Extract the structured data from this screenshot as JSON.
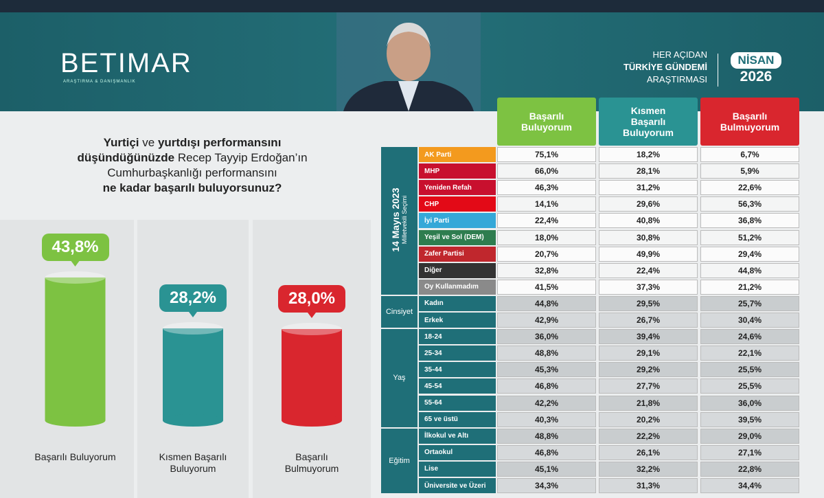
{
  "header": {
    "logo": "BETIMAR",
    "logo_sub": "ARAŞTIRMA & DANIŞMANLIK",
    "survey_lines": [
      "HER AÇIDAN",
      "TÜRKİYE GÜNDEMİ",
      "ARAŞTIRMASI"
    ],
    "month": "NİSAN",
    "year": "2026"
  },
  "question": [
    [
      {
        "text": "Yurtiçi",
        "bold": true
      },
      {
        "text": " ve ",
        "bold": false
      },
      {
        "text": "yurtdışı performansını",
        "bold": true
      }
    ],
    [
      {
        "text": "düşündüğünüzde",
        "bold": true
      },
      {
        "text": " Recep Tayyip Erdoğan’ın",
        "bold": false
      }
    ],
    [
      {
        "text": "Cumhurbaşkanlığı performansını",
        "bold": false
      }
    ],
    [
      {
        "text": "ne kadar başarılı buluyorsunuz?",
        "bold": true
      }
    ]
  ],
  "chart_data": {
    "type": "bar",
    "categories": [
      "Başarılı Buluyorum",
      "Kısmen Başarılı Buluyorum",
      "Başarılı Bulmuyorum"
    ],
    "values": [
      43.8,
      28.2,
      28.0
    ],
    "value_labels": [
      "43,8%",
      "28,2%",
      "28,0%"
    ],
    "colors": [
      "#7dc242",
      "#2a9393",
      "#d9262e"
    ]
  },
  "table": {
    "columns": [
      {
        "label": "Başarılı Buluyorum",
        "color": "#7dc242"
      },
      {
        "label": "Kısmen Başarılı Buluyorum",
        "color": "#2a9393"
      },
      {
        "label": "Başarılı Bulmuyorum",
        "color": "#d9262e"
      }
    ],
    "groups": [
      {
        "label": "14 Mayıs 2023",
        "sublabel": "Milletvekili Seçimi",
        "rows": [
          {
            "label": "AK Parti",
            "color": "#f39a1e",
            "values": [
              "75,1%",
              "18,2%",
              "6,7%"
            ]
          },
          {
            "label": "MHP",
            "color": "#c8102e",
            "values": [
              "66,0%",
              "28,1%",
              "5,9%"
            ]
          },
          {
            "label": "Yeniden Refah",
            "color": "#c8102e",
            "values": [
              "46,3%",
              "31,2%",
              "22,6%"
            ]
          },
          {
            "label": "CHP",
            "color": "#e30a17",
            "values": [
              "14,1%",
              "29,6%",
              "56,3%"
            ]
          },
          {
            "label": "İyi Parti",
            "color": "#35a8d8",
            "values": [
              "22,4%",
              "40,8%",
              "36,8%"
            ]
          },
          {
            "label": "Yeşil ve Sol (DEM)",
            "color": "#2e7d4f",
            "values": [
              "18,0%",
              "30,8%",
              "51,2%"
            ]
          },
          {
            "label": "Zafer Partisi",
            "color": "#c0272d",
            "values": [
              "20,7%",
              "49,9%",
              "29,4%"
            ]
          },
          {
            "label": "Diğer",
            "color": "#333333",
            "values": [
              "32,8%",
              "22,4%",
              "44,8%"
            ]
          },
          {
            "label": "Oy Kullanmadım",
            "color": "#8a8a8a",
            "values": [
              "41,5%",
              "37,3%",
              "21,2%"
            ]
          }
        ]
      },
      {
        "label": "Cinsiyet",
        "rows": [
          {
            "label": "Kadın",
            "color": "#1f6f78",
            "values": [
              "44,8%",
              "29,5%",
              "25,7%"
            ]
          },
          {
            "label": "Erkek",
            "color": "#1f6f78",
            "values": [
              "42,9%",
              "26,7%",
              "30,4%"
            ]
          }
        ]
      },
      {
        "label": "Yaş",
        "rows": [
          {
            "label": "18-24",
            "color": "#1f6f78",
            "values": [
              "36,0%",
              "39,4%",
              "24,6%"
            ]
          },
          {
            "label": "25-34",
            "color": "#1f6f78",
            "values": [
              "48,8%",
              "29,1%",
              "22,1%"
            ]
          },
          {
            "label": "35-44",
            "color": "#1f6f78",
            "values": [
              "45,3%",
              "29,2%",
              "25,5%"
            ]
          },
          {
            "label": "45-54",
            "color": "#1f6f78",
            "values": [
              "46,8%",
              "27,7%",
              "25,5%"
            ]
          },
          {
            "label": "55-64",
            "color": "#1f6f78",
            "values": [
              "42,2%",
              "21,8%",
              "36,0%"
            ]
          },
          {
            "label": "65 ve üstü",
            "color": "#1f6f78",
            "values": [
              "40,3%",
              "20,2%",
              "39,5%"
            ]
          }
        ]
      },
      {
        "label": "Eğitim",
        "rows": [
          {
            "label": "İlkokul ve Altı",
            "color": "#1f6f78",
            "values": [
              "48,8%",
              "22,2%",
              "29,0%"
            ]
          },
          {
            "label": "Ortaokul",
            "color": "#1f6f78",
            "values": [
              "46,8%",
              "26,1%",
              "27,1%"
            ]
          },
          {
            "label": "Lise",
            "color": "#1f6f78",
            "values": [
              "45,1%",
              "32,2%",
              "22,8%"
            ]
          },
          {
            "label": "Üniversite ve Üzeri",
            "color": "#1f6f78",
            "values": [
              "34,3%",
              "31,3%",
              "34,4%"
            ]
          }
        ]
      }
    ]
  }
}
